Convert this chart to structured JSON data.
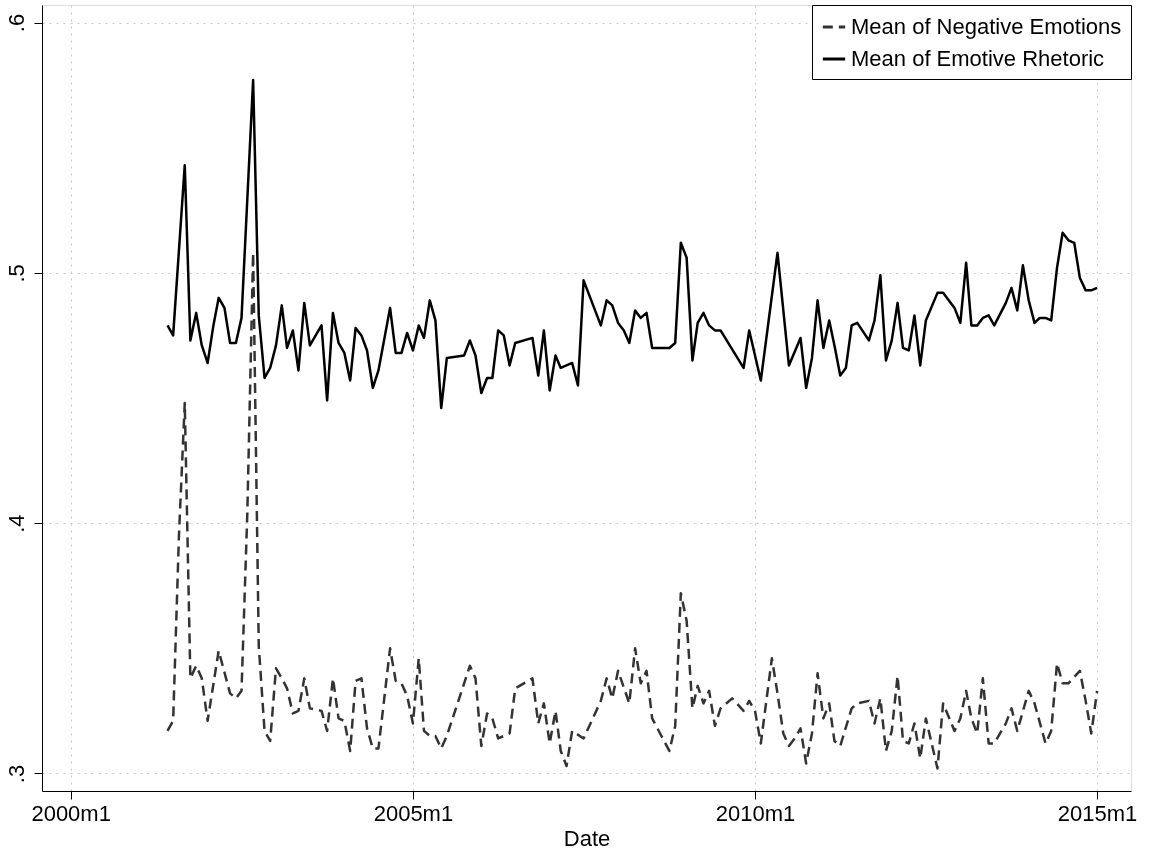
{
  "chart_data": {
    "type": "line",
    "xlabel": "Date",
    "xlim": [
      "1999-08",
      "2015-07"
    ],
    "ylim": [
      0.293,
      0.607
    ],
    "xticks": [
      {
        "value": "2000-01",
        "label": "2000m1"
      },
      {
        "value": "2005-01",
        "label": "2005m1"
      },
      {
        "value": "2010-01",
        "label": "2010m1"
      },
      {
        "value": "2015-01",
        "label": "2015m1"
      }
    ],
    "yticks": [
      {
        "value": 0.3,
        "label": ".3"
      },
      {
        "value": 0.4,
        "label": ".4"
      },
      {
        "value": 0.5,
        "label": ".5"
      },
      {
        "value": 0.6,
        "label": ".6"
      }
    ],
    "grid": true,
    "legend": "top right",
    "series": [
      {
        "name": "Mean of Negative Emotions",
        "color": "#333333",
        "line_style": "dashed",
        "x": [
          "2001-06",
          "2001-07",
          "2001-08",
          "2001-09",
          "2001-10",
          "2001-11",
          "2001-12",
          "2002-01",
          "2002-03",
          "2002-05",
          "2002-06",
          "2002-07",
          "2002-08",
          "2002-09",
          "2002-10",
          "2002-11",
          "2002-12",
          "2003-01",
          "2003-02",
          "2003-03",
          "2003-04",
          "2003-05",
          "2003-06",
          "2003-07",
          "2003-09",
          "2003-10",
          "2003-11",
          "2003-12",
          "2004-01",
          "2004-02",
          "2004-03",
          "2004-04",
          "2004-05",
          "2004-06",
          "2004-07",
          "2004-09",
          "2004-10",
          "2004-11",
          "2004-12",
          "2005-01",
          "2005-02",
          "2005-03",
          "2005-04",
          "2005-05",
          "2005-06",
          "2005-07",
          "2005-11",
          "2005-12",
          "2006-01",
          "2006-02",
          "2006-03",
          "2006-04",
          "2006-06",
          "2006-07",
          "2006-10",
          "2006-11",
          "2006-12",
          "2007-01",
          "2007-02",
          "2007-03",
          "2007-04",
          "2007-05",
          "2007-07",
          "2007-10",
          "2007-11",
          "2007-12",
          "2008-01",
          "2008-03",
          "2008-04",
          "2008-05",
          "2008-06",
          "2008-07",
          "2008-10",
          "2008-11",
          "2008-12",
          "2009-01",
          "2009-02",
          "2009-03",
          "2009-04",
          "2009-05",
          "2009-06",
          "2009-07",
          "2009-09",
          "2009-11",
          "2009-12",
          "2010-01",
          "2010-02",
          "2010-04",
          "2010-05",
          "2010-06",
          "2010-07",
          "2010-08",
          "2010-09",
          "2010-10",
          "2010-11",
          "2010-12",
          "2011-01",
          "2011-02",
          "2011-03",
          "2011-04",
          "2011-06",
          "2011-07",
          "2011-09",
          "2011-10",
          "2011-11",
          "2011-12",
          "2012-01",
          "2012-02",
          "2012-03",
          "2012-04",
          "2012-05",
          "2012-06",
          "2012-07",
          "2012-09",
          "2012-10",
          "2012-12",
          "2013-01",
          "2013-02",
          "2013-03",
          "2013-04",
          "2013-05",
          "2013-06",
          "2013-07",
          "2013-09",
          "2013-10",
          "2013-11",
          "2014-01",
          "2014-02",
          "2014-04",
          "2014-05",
          "2014-06",
          "2014-07",
          "2014-08",
          "2014-10",
          "2014-11",
          "2014-12",
          "2015-01"
        ],
        "values": [
          0.317,
          0.321,
          0.395,
          0.448,
          0.338,
          0.343,
          0.338,
          0.321,
          0.349,
          0.332,
          0.33,
          0.333,
          0.404,
          0.508,
          0.351,
          0.317,
          0.313,
          0.342,
          0.338,
          0.334,
          0.324,
          0.325,
          0.338,
          0.326,
          0.325,
          0.317,
          0.338,
          0.322,
          0.321,
          0.309,
          0.337,
          0.338,
          0.318,
          0.31,
          0.31,
          0.35,
          0.337,
          0.336,
          0.331,
          0.32,
          0.346,
          0.317,
          0.315,
          0.315,
          0.31,
          0.315,
          0.343,
          0.338,
          0.311,
          0.324,
          0.322,
          0.314,
          0.316,
          0.334,
          0.338,
          0.32,
          0.328,
          0.312,
          0.325,
          0.309,
          0.303,
          0.317,
          0.314,
          0.329,
          0.338,
          0.33,
          0.341,
          0.328,
          0.35,
          0.336,
          0.341,
          0.322,
          0.309,
          0.319,
          0.372,
          0.361,
          0.326,
          0.335,
          0.328,
          0.333,
          0.319,
          0.326,
          0.33,
          0.325,
          0.329,
          0.325,
          0.312,
          0.346,
          0.332,
          0.316,
          0.311,
          0.314,
          0.318,
          0.304,
          0.316,
          0.34,
          0.322,
          0.328,
          0.313,
          0.311,
          0.326,
          0.328,
          0.329,
          0.32,
          0.33,
          0.309,
          0.317,
          0.339,
          0.313,
          0.312,
          0.32,
          0.306,
          0.322,
          0.302,
          0.328,
          0.317,
          0.322,
          0.333,
          0.322,
          0.316,
          0.338,
          0.312,
          0.312,
          0.32,
          0.326,
          0.317,
          0.333,
          0.328,
          0.312,
          0.317,
          0.344,
          0.336,
          0.336,
          0.341,
          0.329,
          0.316,
          0.333
        ]
      },
      {
        "name": "Mean of Emotive Rhetoric",
        "color": "#000000",
        "line_style": "solid",
        "x": [
          "2001-06",
          "2001-07",
          "2001-09",
          "2001-10",
          "2001-11",
          "2001-12",
          "2002-01",
          "2002-02",
          "2002-03",
          "2002-04",
          "2002-05",
          "2002-06",
          "2002-07",
          "2002-09",
          "2002-10",
          "2002-11",
          "2002-12",
          "2003-01",
          "2003-02",
          "2003-03",
          "2003-04",
          "2003-05",
          "2003-06",
          "2003-07",
          "2003-09",
          "2003-10",
          "2003-11",
          "2003-12",
          "2004-01",
          "2004-02",
          "2004-03",
          "2004-04",
          "2004-05",
          "2004-06",
          "2004-07",
          "2004-09",
          "2004-10",
          "2004-11",
          "2004-12",
          "2005-01",
          "2005-02",
          "2005-03",
          "2005-04",
          "2005-05",
          "2005-06",
          "2005-07",
          "2005-10",
          "2005-11",
          "2005-12",
          "2006-01",
          "2006-02",
          "2006-03",
          "2006-04",
          "2006-05",
          "2006-06",
          "2006-07",
          "2006-10",
          "2006-11",
          "2006-12",
          "2007-01",
          "2007-02",
          "2007-03",
          "2007-05",
          "2007-06",
          "2007-07",
          "2007-10",
          "2007-11",
          "2007-12",
          "2008-01",
          "2008-02",
          "2008-03",
          "2008-04",
          "2008-05",
          "2008-06",
          "2008-07",
          "2008-10",
          "2008-11",
          "2008-12",
          "2009-01",
          "2009-02",
          "2009-03",
          "2009-04",
          "2009-05",
          "2009-06",
          "2009-07",
          "2009-11",
          "2009-12",
          "2010-02",
          "2010-05",
          "2010-07",
          "2010-09",
          "2010-10",
          "2010-11",
          "2010-12",
          "2011-01",
          "2011-02",
          "2011-03",
          "2011-04",
          "2011-05",
          "2011-06",
          "2011-07",
          "2011-09",
          "2011-10",
          "2011-11",
          "2011-12",
          "2012-01",
          "2012-02",
          "2012-03",
          "2012-04",
          "2012-05",
          "2012-06",
          "2012-07",
          "2012-09",
          "2012-10",
          "2012-12",
          "2013-01",
          "2013-02",
          "2013-03",
          "2013-04",
          "2013-05",
          "2013-06",
          "2013-07",
          "2013-09",
          "2013-10",
          "2013-11",
          "2013-12",
          "2014-01",
          "2014-02",
          "2014-03",
          "2014-04",
          "2014-05",
          "2014-06",
          "2014-07",
          "2014-08",
          "2014-09",
          "2014-10",
          "2014-11",
          "2014-12",
          "2015-01"
        ],
        "values": [
          0.479,
          0.475,
          0.543,
          0.473,
          0.484,
          0.471,
          0.464,
          0.479,
          0.49,
          0.486,
          0.472,
          0.472,
          0.482,
          0.577,
          0.483,
          0.458,
          0.462,
          0.471,
          0.487,
          0.47,
          0.477,
          0.461,
          0.488,
          0.471,
          0.479,
          0.449,
          0.484,
          0.472,
          0.468,
          0.457,
          0.478,
          0.475,
          0.469,
          0.454,
          0.461,
          0.486,
          0.468,
          0.468,
          0.476,
          0.469,
          0.479,
          0.474,
          0.489,
          0.481,
          0.446,
          0.466,
          0.467,
          0.473,
          0.467,
          0.452,
          0.458,
          0.458,
          0.477,
          0.475,
          0.463,
          0.472,
          0.474,
          0.459,
          0.477,
          0.453,
          0.467,
          0.462,
          0.464,
          0.455,
          0.497,
          0.479,
          0.489,
          0.487,
          0.48,
          0.477,
          0.472,
          0.485,
          0.482,
          0.484,
          0.47,
          0.47,
          0.472,
          0.512,
          0.506,
          0.465,
          0.48,
          0.484,
          0.479,
          0.477,
          0.477,
          0.462,
          0.477,
          0.457,
          0.508,
          0.463,
          0.474,
          0.454,
          0.466,
          0.489,
          0.47,
          0.481,
          0.471,
          0.459,
          0.462,
          0.479,
          0.48,
          0.473,
          0.481,
          0.499,
          0.465,
          0.473,
          0.488,
          0.47,
          0.469,
          0.483,
          0.463,
          0.481,
          0.492,
          0.492,
          0.486,
          0.48,
          0.504,
          0.479,
          0.479,
          0.482,
          0.483,
          0.479,
          0.488,
          0.494,
          0.485,
          0.503,
          0.489,
          0.48,
          0.482,
          0.482,
          0.481,
          0.502,
          0.516,
          0.513,
          0.512,
          0.498,
          0.493,
          0.493,
          0.494
        ]
      }
    ]
  }
}
